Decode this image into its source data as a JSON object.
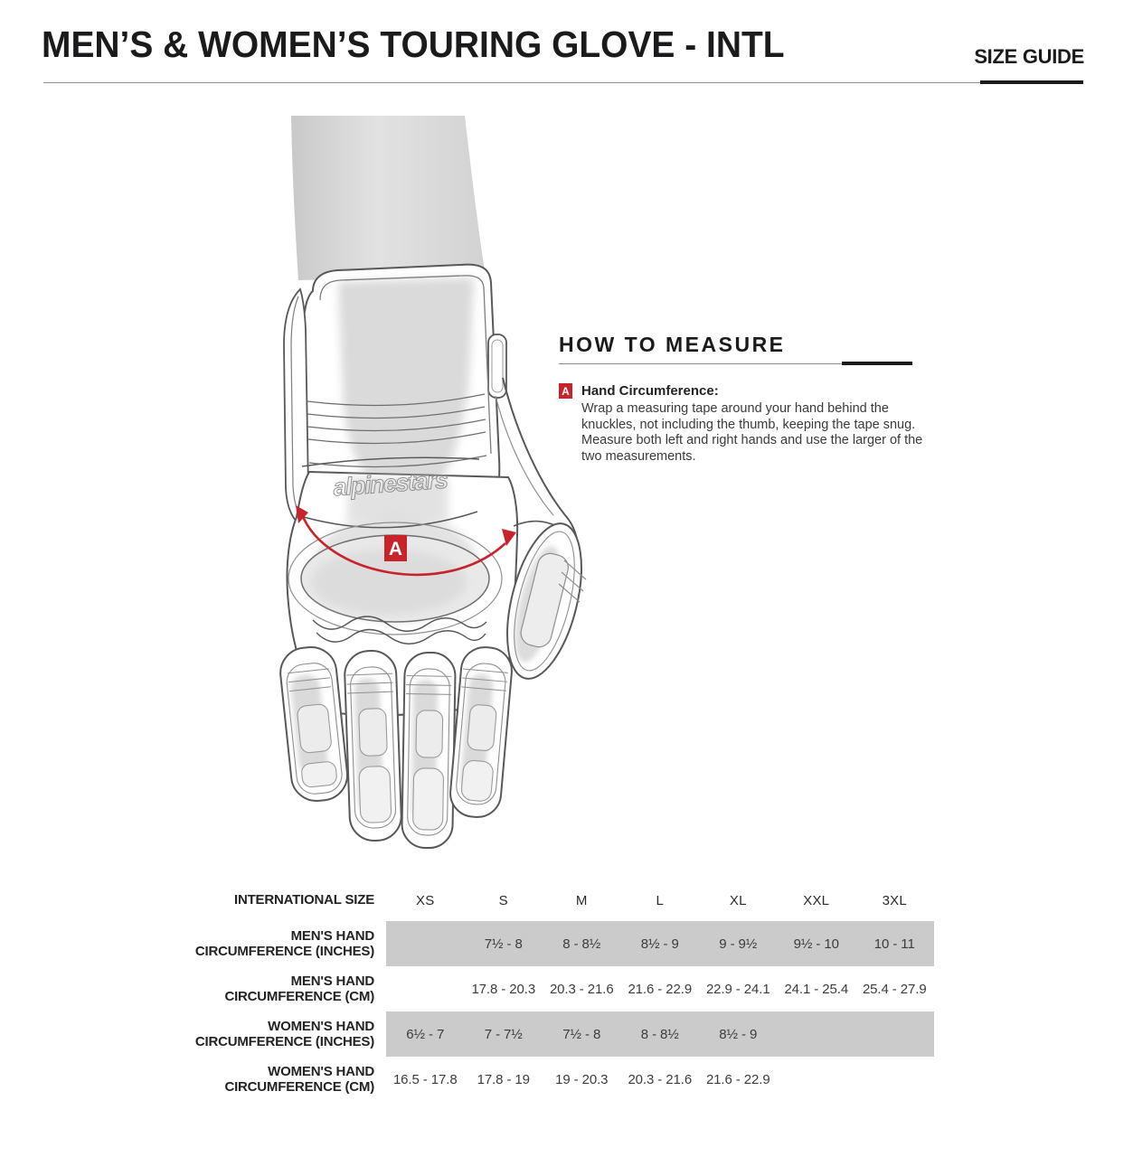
{
  "header": {
    "title": "MEN’S & WOMEN’S TOURING GLOVE - INTL",
    "size_guide_label": "SIZE GUIDE"
  },
  "how_to_measure": {
    "heading": "HOW TO MEASURE",
    "marker_label": "A",
    "item_title": "Hand Circumference:",
    "item_body": "Wrap a measuring tape around your hand behind the knuckles, not including the thumb, keeping the tape snug. Measure both left and right hands and use the larger of the two measurements."
  },
  "glove": {
    "marker_label": "A",
    "brand_script": "alpinestars"
  },
  "size_table": {
    "type": "table",
    "header_label": "INTERNATIONAL SIZE",
    "sizes": [
      "XS",
      "S",
      "M",
      "L",
      "XL",
      "XXL",
      "3XL"
    ],
    "rows": [
      {
        "label": [
          "MEN'S HAND",
          "CIRCUMFERENCE (INCHES)"
        ],
        "shaded": true,
        "values": [
          "",
          "7½ - 8",
          "8 - 8½",
          "8½ - 9",
          "9 - 9½",
          "9½ - 10",
          "10 - 11"
        ]
      },
      {
        "label": [
          "MEN'S HAND",
          "CIRCUMFERENCE (CM)"
        ],
        "shaded": false,
        "values": [
          "",
          "17.8 - 20.3",
          "20.3 - 21.6",
          "21.6 - 22.9",
          "22.9 - 24.1",
          "24.1 - 25.4",
          "25.4 - 27.9"
        ]
      },
      {
        "label": [
          "WOMEN'S HAND",
          "CIRCUMFERENCE (INCHES)"
        ],
        "shaded": true,
        "values": [
          "6½ - 7",
          "7 - 7½",
          "7½ - 8",
          "8 - 8½",
          "8½ - 9",
          "",
          ""
        ]
      },
      {
        "label": [
          "WOMEN'S HAND",
          "CIRCUMFERENCE (CM)"
        ],
        "shaded": false,
        "values": [
          "16.5 - 17.8",
          "17.8 - 19",
          "19 - 20.3",
          "20.3 - 21.6",
          "21.6 - 22.9",
          "",
          ""
        ]
      }
    ]
  },
  "colors": {
    "accent_red": "#c8232b",
    "shaded_row": "#cbcbcb",
    "ink": "#1b1b1d"
  }
}
